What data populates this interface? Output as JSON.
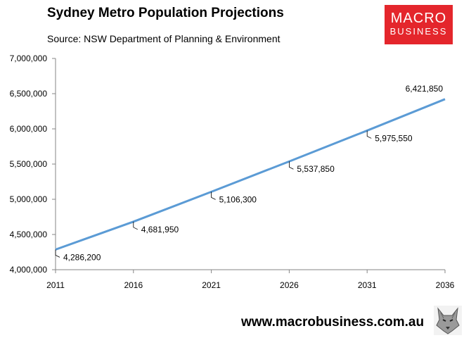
{
  "header": {
    "title": "Sydney Metro Population Projections",
    "subtitle": "Source: NSW Department of Planning & Environment"
  },
  "logo": {
    "line1": "MACRO",
    "line2": "BUSINESS",
    "bg_color": "#e4262c"
  },
  "footer": {
    "url": "www.macrobusiness.com.au",
    "mascot_icon": "wolf-head-icon"
  },
  "chart_data": {
    "type": "line",
    "categories": [
      "2011",
      "2016",
      "2021",
      "2026",
      "2031",
      "2036"
    ],
    "series": [
      {
        "values": [
          4286200,
          4681950,
          5106300,
          5537850,
          5975550,
          6421850
        ],
        "labels": [
          "4,286,200",
          "4,681,950",
          "5,106,300",
          "5,537,850",
          "5,975,550",
          "6,421,850"
        ],
        "color": "#5b9bd5"
      }
    ],
    "y_ticks": [
      "4,000,000",
      "4,500,000",
      "5,000,000",
      "5,500,000",
      "6,000,000",
      "6,500,000",
      "7,000,000"
    ],
    "ylim": [
      4000000,
      7000000
    ],
    "grid": false,
    "legend": "none"
  }
}
